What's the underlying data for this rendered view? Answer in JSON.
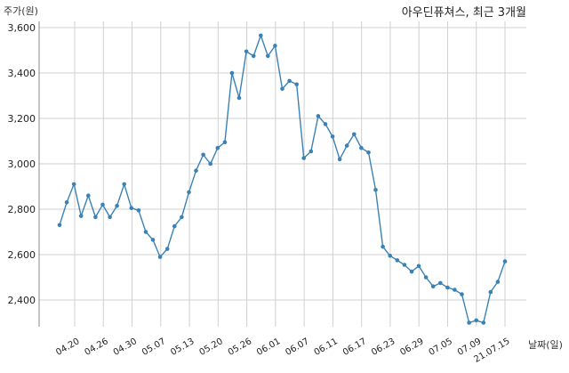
{
  "chart_data": {
    "type": "line",
    "title": "아우딘퓨쳐스, 최근 3개월",
    "ylabel": "주가(원)",
    "xlabel": "날짜(일)",
    "ylim": [
      2250,
      3620
    ],
    "yticks": [
      2400,
      2600,
      2800,
      3000,
      3200,
      3400,
      3600
    ],
    "ytick_labels": [
      "2,400",
      "2,600",
      "2,800",
      "3,000",
      "3,200",
      "3,400",
      "3,600"
    ],
    "xtick_labels": [
      "04.20",
      "04.26",
      "04.30",
      "05.07",
      "05.13",
      "05.20",
      "05.26",
      "06.01",
      "06.07",
      "06.11",
      "06.17",
      "06.23",
      "06.29",
      "07.05",
      "07.09",
      "21.07.15"
    ],
    "grid": true,
    "color": "#3b82b4",
    "series": [
      {
        "values": [
          2730,
          2830,
          2910,
          2770,
          2860,
          2765,
          2820,
          2765,
          2815,
          2910,
          2805,
          2795,
          2700,
          2665,
          2590,
          2625,
          2725,
          2765,
          2875,
          2970,
          3040,
          3000,
          3070,
          3095,
          3400,
          3290,
          3495,
          3475,
          3565,
          3475,
          3520,
          3330,
          3365,
          3350,
          3025,
          3055,
          3210,
          3175,
          3120,
          3020,
          3080,
          3130,
          3070,
          3050,
          2885,
          2635,
          2595,
          2575,
          2555,
          2525,
          2550,
          2500,
          2460,
          2475,
          2455,
          2445,
          2425,
          2300,
          2310,
          2300,
          2435,
          2480,
          2570
        ]
      }
    ]
  }
}
